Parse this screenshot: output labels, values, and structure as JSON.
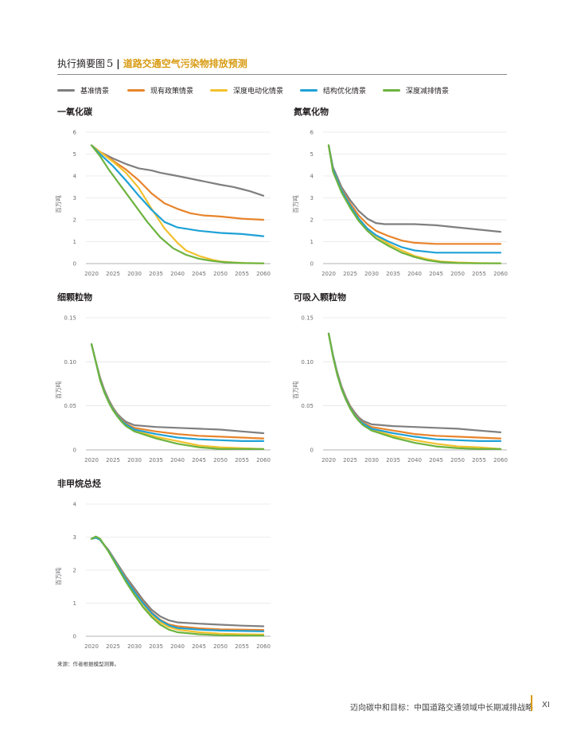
{
  "header": {
    "figure_label": "执行摘要图",
    "figure_number": "5",
    "separator": "|",
    "title": "道路交通空气污染物排放预测"
  },
  "legend": [
    {
      "name": "基准情景",
      "color": "#7f7f80"
    },
    {
      "name": "现有政策情景",
      "color": "#e8842c"
    },
    {
      "name": "深度电动化情景",
      "color": "#f2c12e"
    },
    {
      "name": "结构优化情景",
      "color": "#1fa1d6"
    },
    {
      "name": "深度减排情景",
      "color": "#6db33f"
    }
  ],
  "chart_data": [
    {
      "type": "line",
      "title": "一氧化碳",
      "ylabel": "百万吨",
      "xlabel": "",
      "xlim": [
        2020,
        2060
      ],
      "ylim": [
        0,
        6
      ],
      "xticks": [
        "2020",
        "2025",
        "2030",
        "2035",
        "2040",
        "2045",
        "2050",
        "2055",
        "2060"
      ],
      "yticks": [
        "0",
        "1",
        "2",
        "3",
        "4",
        "5",
        "6"
      ],
      "grid": "horizontal",
      "series": [
        {
          "name": "基准情景",
          "x": [
            2020,
            2022,
            2025,
            2028,
            2031,
            2034,
            2036,
            2040,
            2045,
            2050,
            2053,
            2055,
            2057,
            2060
          ],
          "values": [
            5.4,
            5.1,
            4.8,
            4.55,
            4.35,
            4.25,
            4.15,
            4.0,
            3.8,
            3.6,
            3.5,
            3.4,
            3.3,
            3.1
          ]
        },
        {
          "name": "现有政策情景",
          "x": [
            2020,
            2022,
            2025,
            2028,
            2031,
            2034,
            2037,
            2040,
            2043,
            2046,
            2050,
            2055,
            2060
          ],
          "values": [
            5.4,
            5.1,
            4.7,
            4.3,
            3.8,
            3.2,
            2.75,
            2.5,
            2.3,
            2.2,
            2.15,
            2.05,
            2.0
          ]
        },
        {
          "name": "深度电动化情景",
          "x": [
            2020,
            2022,
            2025,
            2028,
            2031,
            2034,
            2037,
            2040,
            2042,
            2045,
            2048,
            2050,
            2053,
            2056,
            2060
          ],
          "values": [
            5.4,
            5.1,
            4.65,
            4.15,
            3.45,
            2.5,
            1.6,
            0.95,
            0.6,
            0.35,
            0.18,
            0.1,
            0.05,
            0.02,
            0.01
          ]
        },
        {
          "name": "结构优化情景",
          "x": [
            2020,
            2022,
            2025,
            2028,
            2031,
            2034,
            2037,
            2040,
            2045,
            2050,
            2055,
            2060
          ],
          "values": [
            5.4,
            5.0,
            4.45,
            3.8,
            3.1,
            2.45,
            1.9,
            1.65,
            1.5,
            1.4,
            1.35,
            1.25
          ]
        },
        {
          "name": "深度减排情景",
          "x": [
            2020,
            2022,
            2024,
            2027,
            2030,
            2033,
            2036,
            2039,
            2042,
            2045,
            2048,
            2051,
            2055,
            2060
          ],
          "values": [
            5.4,
            4.9,
            4.3,
            3.5,
            2.7,
            1.9,
            1.2,
            0.7,
            0.4,
            0.22,
            0.12,
            0.06,
            0.02,
            0.01
          ]
        }
      ]
    },
    {
      "type": "line",
      "title": "氮氧化物",
      "ylabel": "百万吨",
      "xlabel": "",
      "xlim": [
        2020,
        2060
      ],
      "ylim": [
        0,
        6
      ],
      "xticks": [
        "2020",
        "2025",
        "2030",
        "2035",
        "2040",
        "2045",
        "2050",
        "2055",
        "2060"
      ],
      "yticks": [
        "0",
        "1",
        "2",
        "3",
        "4",
        "5",
        "6"
      ],
      "grid": "horizontal",
      "series": [
        {
          "name": "基准情景",
          "x": [
            2020,
            2021,
            2023,
            2025,
            2027,
            2029,
            2031,
            2033,
            2035,
            2040,
            2045,
            2050,
            2055,
            2060
          ],
          "values": [
            5.4,
            4.4,
            3.5,
            2.9,
            2.4,
            2.05,
            1.85,
            1.8,
            1.8,
            1.8,
            1.75,
            1.65,
            1.55,
            1.45
          ]
        },
        {
          "name": "现有政策情景",
          "x": [
            2020,
            2021,
            2023,
            2025,
            2027,
            2029,
            2031,
            2034,
            2037,
            2040,
            2045,
            2050,
            2055,
            2060
          ],
          "values": [
            5.4,
            4.3,
            3.4,
            2.75,
            2.2,
            1.8,
            1.5,
            1.25,
            1.05,
            0.95,
            0.9,
            0.9,
            0.9,
            0.9
          ]
        },
        {
          "name": "深度电动化情景",
          "x": [
            2020,
            2021,
            2023,
            2025,
            2027,
            2029,
            2031,
            2034,
            2037,
            2040,
            2043,
            2046,
            2050,
            2055,
            2060
          ],
          "values": [
            5.4,
            4.3,
            3.35,
            2.65,
            2.05,
            1.6,
            1.25,
            0.9,
            0.6,
            0.35,
            0.2,
            0.1,
            0.05,
            0.02,
            0.01
          ]
        },
        {
          "name": "结构优化情景",
          "x": [
            2020,
            2021,
            2023,
            2025,
            2027,
            2029,
            2031,
            2034,
            2037,
            2040,
            2045,
            2050,
            2055,
            2060
          ],
          "values": [
            5.4,
            4.3,
            3.35,
            2.65,
            2.05,
            1.6,
            1.3,
            1.0,
            0.75,
            0.6,
            0.5,
            0.5,
            0.5,
            0.5
          ]
        },
        {
          "name": "深度减排情景",
          "x": [
            2020,
            2021,
            2023,
            2025,
            2027,
            2029,
            2031,
            2034,
            2037,
            2040,
            2043,
            2046,
            2050,
            2055,
            2060
          ],
          "values": [
            5.4,
            4.2,
            3.25,
            2.55,
            1.95,
            1.5,
            1.15,
            0.8,
            0.5,
            0.3,
            0.15,
            0.07,
            0.02,
            0.01,
            0.01
          ]
        }
      ]
    },
    {
      "type": "line",
      "title": "细颗粒物",
      "ylabel": "百万吨",
      "xlabel": "",
      "xlim": [
        2020,
        2060
      ],
      "ylim": [
        0,
        0.15
      ],
      "xticks": [
        "2020",
        "2025",
        "2030",
        "2035",
        "2040",
        "2045",
        "2050",
        "2055",
        "2060"
      ],
      "yticks": [
        "0",
        "0.05",
        "0.10",
        "0.15"
      ],
      "grid": "horizontal",
      "series": [
        {
          "name": "基准情景",
          "x": [
            2020,
            2021,
            2022,
            2023,
            2024,
            2025,
            2026,
            2027,
            2028,
            2030,
            2035,
            2040,
            2045,
            2050,
            2055,
            2060
          ],
          "values": [
            0.12,
            0.1,
            0.082,
            0.068,
            0.057,
            0.048,
            0.041,
            0.036,
            0.032,
            0.028,
            0.026,
            0.025,
            0.024,
            0.023,
            0.021,
            0.019
          ]
        },
        {
          "name": "现有政策情景",
          "x": [
            2020,
            2021,
            2022,
            2023,
            2024,
            2025,
            2026,
            2027,
            2028,
            2030,
            2035,
            2040,
            2045,
            2050,
            2055,
            2060
          ],
          "values": [
            0.12,
            0.1,
            0.081,
            0.067,
            0.056,
            0.047,
            0.04,
            0.034,
            0.03,
            0.025,
            0.021,
            0.018,
            0.016,
            0.015,
            0.014,
            0.013
          ]
        },
        {
          "name": "深度电动化情景",
          "x": [
            2020,
            2021,
            2022,
            2023,
            2024,
            2025,
            2026,
            2027,
            2028,
            2030,
            2035,
            2040,
            2045,
            2050,
            2055,
            2060
          ],
          "values": [
            0.12,
            0.1,
            0.08,
            0.066,
            0.055,
            0.046,
            0.039,
            0.033,
            0.028,
            0.022,
            0.015,
            0.01,
            0.005,
            0.003,
            0.002,
            0.001
          ]
        },
        {
          "name": "结构优化情景",
          "x": [
            2020,
            2021,
            2022,
            2023,
            2024,
            2025,
            2026,
            2027,
            2028,
            2030,
            2035,
            2040,
            2045,
            2050,
            2055,
            2060
          ],
          "values": [
            0.12,
            0.1,
            0.08,
            0.066,
            0.055,
            0.046,
            0.039,
            0.033,
            0.029,
            0.023,
            0.018,
            0.014,
            0.012,
            0.011,
            0.01,
            0.01
          ]
        },
        {
          "name": "深度减排情景",
          "x": [
            2020,
            2021,
            2022,
            2023,
            2024,
            2025,
            2026,
            2027,
            2028,
            2030,
            2035,
            2040,
            2045,
            2050,
            2055,
            2060
          ],
          "values": [
            0.12,
            0.1,
            0.079,
            0.065,
            0.054,
            0.045,
            0.038,
            0.032,
            0.027,
            0.021,
            0.013,
            0.007,
            0.003,
            0.001,
            0.001,
            0.001
          ]
        }
      ]
    },
    {
      "type": "line",
      "title": "可吸入颗粒物",
      "ylabel": "百万吨",
      "xlabel": "",
      "xlim": [
        2020,
        2060
      ],
      "ylim": [
        0,
        0.15
      ],
      "xticks": [
        "2020",
        "2025",
        "2030",
        "2035",
        "2040",
        "2045",
        "2050",
        "2055",
        "2060"
      ],
      "yticks": [
        "0",
        "0.05",
        "0.10",
        "0.15"
      ],
      "grid": "horizontal",
      "series": [
        {
          "name": "基准情景",
          "x": [
            2020,
            2021,
            2022,
            2023,
            2024,
            2025,
            2026,
            2027,
            2028,
            2030,
            2035,
            2040,
            2045,
            2050,
            2055,
            2060
          ],
          "values": [
            0.132,
            0.108,
            0.088,
            0.072,
            0.06,
            0.05,
            0.043,
            0.037,
            0.033,
            0.029,
            0.027,
            0.026,
            0.025,
            0.024,
            0.022,
            0.02
          ]
        },
        {
          "name": "现有政策情景",
          "x": [
            2020,
            2021,
            2022,
            2023,
            2024,
            2025,
            2026,
            2027,
            2028,
            2030,
            2035,
            2040,
            2045,
            2050,
            2055,
            2060
          ],
          "values": [
            0.132,
            0.107,
            0.087,
            0.071,
            0.059,
            0.049,
            0.041,
            0.035,
            0.031,
            0.026,
            0.022,
            0.018,
            0.016,
            0.015,
            0.014,
            0.013
          ]
        },
        {
          "name": "深度电动化情景",
          "x": [
            2020,
            2021,
            2022,
            2023,
            2024,
            2025,
            2026,
            2027,
            2028,
            2030,
            2035,
            2040,
            2045,
            2050,
            2055,
            2060
          ],
          "values": [
            0.132,
            0.107,
            0.086,
            0.07,
            0.058,
            0.048,
            0.04,
            0.034,
            0.029,
            0.023,
            0.016,
            0.011,
            0.007,
            0.004,
            0.003,
            0.001
          ]
        },
        {
          "name": "结构优化情景",
          "x": [
            2020,
            2021,
            2022,
            2023,
            2024,
            2025,
            2026,
            2027,
            2028,
            2030,
            2035,
            2040,
            2045,
            2050,
            2055,
            2060
          ],
          "values": [
            0.132,
            0.107,
            0.086,
            0.07,
            0.058,
            0.048,
            0.04,
            0.034,
            0.03,
            0.024,
            0.019,
            0.015,
            0.012,
            0.011,
            0.01,
            0.01
          ]
        },
        {
          "name": "深度减排情景",
          "x": [
            2020,
            2021,
            2022,
            2023,
            2024,
            2025,
            2026,
            2027,
            2028,
            2030,
            2035,
            2040,
            2045,
            2050,
            2055,
            2060
          ],
          "values": [
            0.132,
            0.106,
            0.085,
            0.069,
            0.057,
            0.047,
            0.039,
            0.033,
            0.028,
            0.022,
            0.014,
            0.008,
            0.004,
            0.002,
            0.001,
            0.001
          ]
        }
      ]
    },
    {
      "type": "line",
      "title": "非甲烷总烃",
      "ylabel": "百万吨",
      "xlabel": "",
      "xlim": [
        2020,
        2060
      ],
      "ylim": [
        0,
        4
      ],
      "xticks": [
        "2020",
        "2025",
        "2030",
        "2035",
        "2040",
        "2045",
        "2050",
        "2055",
        "2060"
      ],
      "yticks": [
        "0",
        "1",
        "2",
        "3",
        "4"
      ],
      "grid": "horizontal",
      "series": [
        {
          "name": "基准情景",
          "x": [
            2020,
            2021,
            2022,
            2024,
            2026,
            2028,
            2030,
            2032,
            2034,
            2036,
            2038,
            2040,
            2045,
            2050,
            2055,
            2060
          ],
          "values": [
            2.95,
            2.98,
            2.92,
            2.6,
            2.2,
            1.8,
            1.45,
            1.1,
            0.8,
            0.6,
            0.48,
            0.42,
            0.38,
            0.35,
            0.32,
            0.3
          ]
        },
        {
          "name": "现有政策情景",
          "x": [
            2020,
            2021,
            2022,
            2024,
            2026,
            2028,
            2030,
            2032,
            2034,
            2036,
            2038,
            2040,
            2045,
            2050,
            2055,
            2060
          ],
          "values": [
            2.95,
            2.98,
            2.92,
            2.58,
            2.17,
            1.75,
            1.38,
            1.03,
            0.72,
            0.5,
            0.36,
            0.3,
            0.24,
            0.21,
            0.2,
            0.19
          ]
        },
        {
          "name": "深度电动化情景",
          "x": [
            2020,
            2021,
            2022,
            2024,
            2026,
            2028,
            2030,
            2032,
            2034,
            2036,
            2038,
            2040,
            2045,
            2050,
            2055,
            2060
          ],
          "values": [
            2.95,
            2.98,
            2.92,
            2.57,
            2.15,
            1.72,
            1.33,
            0.97,
            0.65,
            0.42,
            0.28,
            0.2,
            0.12,
            0.08,
            0.06,
            0.05
          ]
        },
        {
          "name": "结构优化情景",
          "x": [
            2020,
            2021,
            2022,
            2024,
            2026,
            2028,
            2030,
            2032,
            2034,
            2036,
            2038,
            2040,
            2045,
            2050,
            2055,
            2060
          ],
          "values": [
            2.95,
            2.98,
            2.92,
            2.57,
            2.15,
            1.72,
            1.35,
            1.0,
            0.7,
            0.48,
            0.33,
            0.25,
            0.2,
            0.17,
            0.16,
            0.15
          ]
        },
        {
          "name": "深度减排情景",
          "x": [
            2020,
            2021,
            2022,
            2024,
            2026,
            2028,
            2030,
            2032,
            2034,
            2036,
            2038,
            2040,
            2045,
            2050,
            2055,
            2060
          ],
          "values": [
            2.95,
            3.02,
            2.95,
            2.55,
            2.1,
            1.65,
            1.25,
            0.88,
            0.58,
            0.35,
            0.2,
            0.12,
            0.06,
            0.03,
            0.02,
            0.02
          ]
        }
      ]
    }
  ],
  "source": "来源：作者根据模型测算。",
  "footer": {
    "text": "迈向碳中和目标：中国道路交通领域中长期减排战略",
    "page_number": "XI"
  }
}
